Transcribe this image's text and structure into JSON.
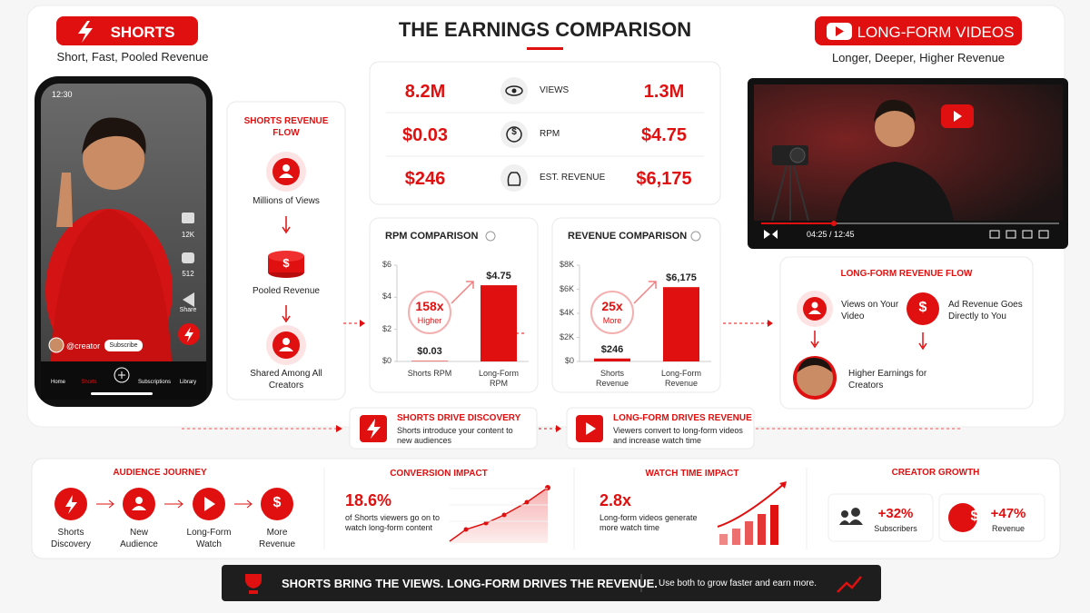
{
  "header": {
    "shorts_badge": "SHORTS",
    "shorts_tagline": "Short, Fast, Pooled Revenue",
    "title": "THE EARNINGS COMPARISON",
    "longform_badge": "LONG-FORM VIDEOS",
    "longform_tagline": "Longer, Deeper, Higher Revenue"
  },
  "phone": {
    "time": "12:30",
    "likes": "12K",
    "comments": "512",
    "share": "Share",
    "handle": "@creator",
    "subscribe": "Subscribe",
    "nav": [
      "Home",
      "Shorts",
      "Subscriptions",
      "Library"
    ]
  },
  "shorts_flow": {
    "title": "SHORTS REVENUE FLOW",
    "steps": [
      "Millions of Views",
      "Pooled Revenue",
      "Shared Among All Creators"
    ]
  },
  "stats": {
    "rows": [
      {
        "shorts": "8.2M",
        "metric": "VIEWS",
        "longform": "1.3M"
      },
      {
        "shorts": "$0.03",
        "metric": "RPM",
        "longform": "$4.75"
      },
      {
        "shorts": "$246",
        "metric": "EST. REVENUE",
        "longform": "$6,175"
      }
    ]
  },
  "chart_data": [
    {
      "type": "bar",
      "title": "RPM COMPARISON",
      "categories": [
        "Shorts RPM",
        "Long-Form RPM"
      ],
      "values": [
        0.03,
        4.75
      ],
      "value_labels": [
        "$0.03",
        "$4.75"
      ],
      "color": "#e01010",
      "ylim": [
        0,
        6
      ],
      "yticks": [
        {
          "value": 0,
          "label": "$0"
        },
        {
          "value": 2,
          "label": "$2"
        },
        {
          "value": 4,
          "label": "$4"
        },
        {
          "value": 6,
          "label": "$6"
        }
      ],
      "annotation": {
        "multiple": "158x",
        "text": "Higher"
      }
    },
    {
      "type": "bar",
      "title": "REVENUE COMPARISON",
      "categories": [
        "Shorts Revenue",
        "Long-Form Revenue"
      ],
      "values": [
        246,
        6175
      ],
      "value_labels": [
        "$246",
        "$6,175"
      ],
      "color": "#e01010",
      "ylim": [
        0,
        8000
      ],
      "yticks": [
        {
          "value": 0,
          "label": "$0"
        },
        {
          "value": 2000,
          "label": "$2K"
        },
        {
          "value": 4000,
          "label": "$4K"
        },
        {
          "value": 6000,
          "label": "$6K"
        },
        {
          "value": 8000,
          "label": "$8K"
        }
      ],
      "annotation": {
        "multiple": "25x",
        "text": "More"
      }
    }
  ],
  "video": {
    "time": "04:25 / 12:45"
  },
  "longform_flow": {
    "title": "LONG-FORM REVENUE FLOW",
    "steps": [
      "Views on Your Video",
      "Ad Revenue Goes Directly to You",
      "Higher Earnings for Creators"
    ]
  },
  "callouts": [
    {
      "title": "SHORTS DRIVE DISCOVERY",
      "text": "Shorts introduce your content to new audiences"
    },
    {
      "title": "LONG-FORM DRIVES REVENUE",
      "text": "Viewers convert to long-form videos and increase watch time"
    }
  ],
  "audience_journey": {
    "title": "AUDIENCE JOURNEY",
    "steps": [
      "Shorts Discovery",
      "New Audience",
      "Long-Form Watch",
      "More Revenue"
    ]
  },
  "conversion": {
    "title": "CONVERSION IMPACT",
    "value": "18.6%",
    "text": "of Shorts viewers go on to watch long-form content"
  },
  "watch_time": {
    "title": "WATCH TIME IMPACT",
    "value": "2.8x",
    "text": "Long-form videos generate more watch time"
  },
  "creator_growth": {
    "title": "CREATOR GROWTH",
    "items": [
      {
        "value": "+32%",
        "label": "Subscribers"
      },
      {
        "value": "+47%",
        "label": "Revenue"
      }
    ]
  },
  "footer": {
    "headline": "SHORTS BRING THE VIEWS. LONG-FORM DRIVES THE REVENUE.",
    "text": "Use both to grow faster and earn more."
  }
}
